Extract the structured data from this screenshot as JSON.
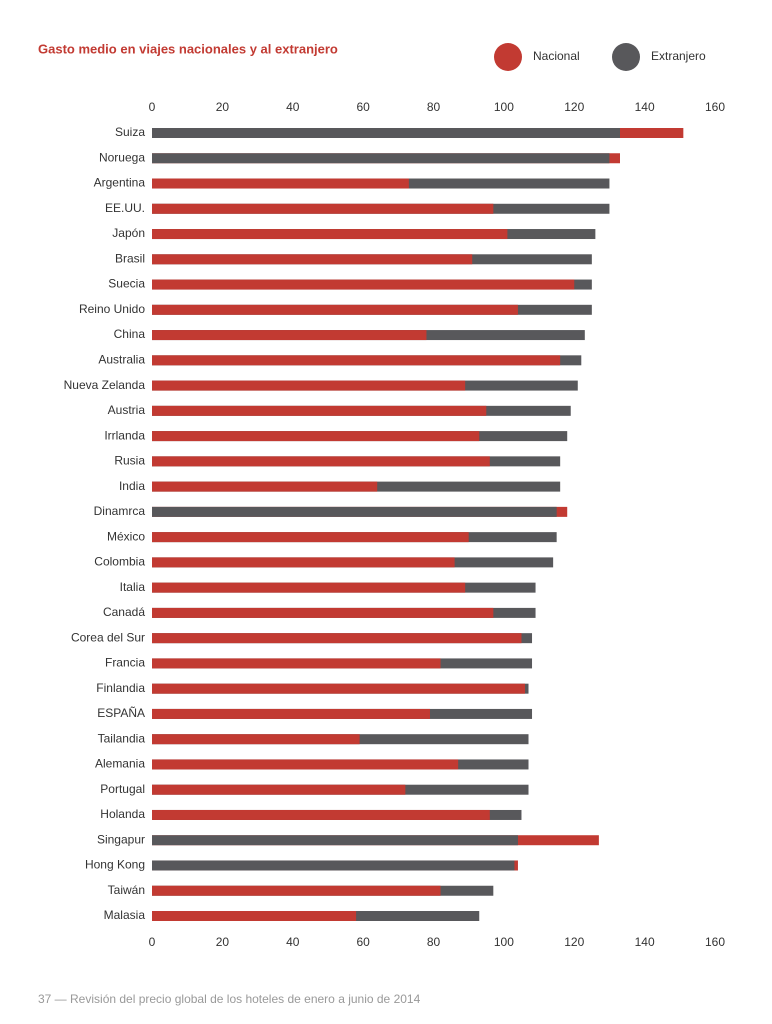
{
  "chart_data": {
    "type": "bar",
    "orientation": "horizontal",
    "overlay": true,
    "title": "Gasto medio en viajes nacionales y al extranjero",
    "categories": [
      "Suiza",
      "Noruega",
      "Argentina",
      "EE.UU.",
      "Japón",
      "Brasil",
      "Suecia",
      "Reino Unido",
      "China",
      "Australia",
      "Nueva Zelanda",
      "Austria",
      "Irrlanda",
      "Rusia",
      "India",
      "Dinamrca",
      "México",
      "Colombia",
      "Italia",
      "Canadá",
      "Corea del Sur",
      "Francia",
      "Finlandia",
      "ESPAÑA",
      "Tailandia",
      "Alemania",
      "Portugal",
      "Holanda",
      "Singapur",
      "Hong Kong",
      "Taiwán",
      "Malasia"
    ],
    "series": [
      {
        "name": "Nacional",
        "color": "#c23a32",
        "values": [
          151,
          133,
          73,
          97,
          101,
          91,
          120,
          104,
          78,
          116,
          89,
          95,
          93,
          96,
          64,
          118,
          90,
          86,
          89,
          97,
          105,
          82,
          106,
          79,
          59,
          87,
          72,
          96,
          127,
          104,
          82,
          58
        ]
      },
      {
        "name": "Extranjero",
        "color": "#58585b",
        "values": [
          133,
          130,
          130,
          130,
          126,
          125,
          125,
          125,
          123,
          122,
          121,
          119,
          118,
          116,
          116,
          115,
          115,
          114,
          109,
          109,
          108,
          108,
          107,
          108,
          107,
          107,
          107,
          105,
          104,
          103,
          97,
          93
        ]
      }
    ],
    "xlim": [
      0,
      160
    ],
    "xticks": [
      0,
      20,
      40,
      60,
      80,
      100,
      120,
      140,
      160
    ],
    "grid": false,
    "legend": "top-right"
  },
  "footer": "37 — Revisión del precio global de los hoteles de enero a junio de 2014"
}
